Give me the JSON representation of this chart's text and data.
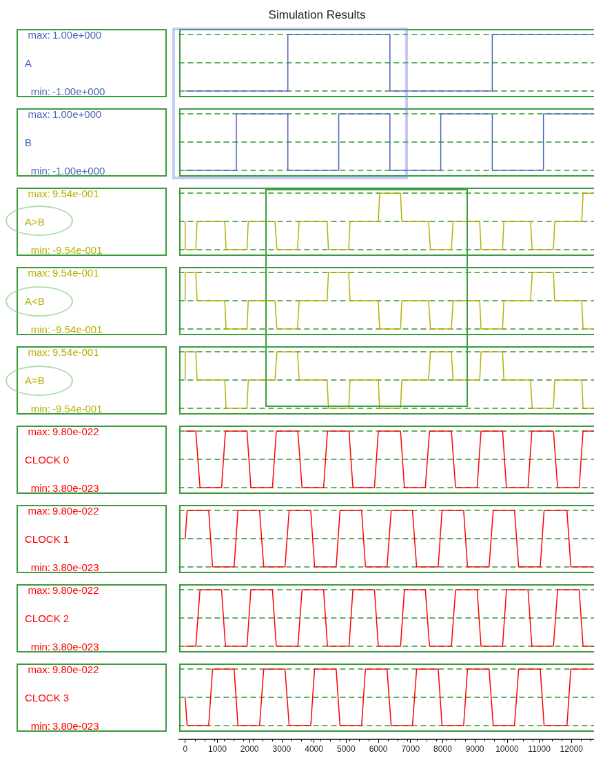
{
  "chart_data": [
    {
      "type": "line",
      "title": "Simulation Results",
      "ylabel": "A",
      "xlim": [
        -200,
        12700
      ],
      "ylim": [
        -1,
        1
      ],
      "ref_lines": [
        {
          "axis": "y",
          "value": 0,
          "color": "#3c9a3c",
          "line_style": "dashed"
        }
      ],
      "yticks": [
        {
          "value": -1,
          "label": "-1.00e+000"
        },
        {
          "value": 1,
          "label": "1.00e+000"
        }
      ],
      "annotations": [
        "max:",
        "min:"
      ],
      "tick_labels": "y",
      "grid": "y",
      "marker": "none",
      "line_style": "solid",
      "series": [
        {
          "color": "#4466bb",
          "x": [
            0,
            3190,
            3190,
            6360,
            6360,
            9540,
            9540,
            12700
          ],
          "values": [
            -1,
            -1,
            1,
            1,
            -1,
            -1,
            1,
            1
          ]
        }
      ]
    },
    {
      "type": "line",
      "ylabel": "B",
      "xlim": [
        -200,
        12700
      ],
      "ylim": [
        -1,
        1
      ],
      "ref_lines": [
        {
          "axis": "y",
          "value": 0,
          "color": "#3c9a3c",
          "line_style": "dashed"
        }
      ],
      "yticks": [
        {
          "value": -1,
          "label": "-1.00e+000"
        },
        {
          "value": 1,
          "label": "1.00e+000"
        }
      ],
      "annotations": [
        "max:",
        "min:"
      ],
      "tick_labels": "y",
      "grid": "y",
      "marker": "none",
      "line_style": "solid",
      "series": [
        {
          "color": "#4466bb",
          "x": [
            0,
            1590,
            1590,
            3190,
            3190,
            4770,
            4770,
            6360,
            6360,
            7940,
            7940,
            9540,
            9540,
            11130,
            11130,
            12700
          ],
          "values": [
            -1,
            -1,
            1,
            1,
            -1,
            -1,
            1,
            1,
            -1,
            -1,
            1,
            1,
            -1,
            -1,
            1,
            1
          ]
        }
      ]
    },
    {
      "type": "line",
      "ylabel": "A>B",
      "xlim": [
        -200,
        12700
      ],
      "ylim": [
        -0.954,
        0.954
      ],
      "ref_lines": [
        {
          "axis": "y",
          "value": 0,
          "color": "#3c9a3c",
          "line_style": "dashed"
        }
      ],
      "yticks": [
        {
          "value": -0.954,
          "label": "-9.54e-001"
        },
        {
          "value": 0.954,
          "label": "9.54e-001"
        }
      ],
      "annotations": [
        "max:",
        "min:"
      ],
      "tick_labels": "y",
      "grid": "y",
      "marker": "none",
      "line_style": "solid",
      "series": [
        {
          "color": "#b5b000",
          "x": [
            0,
            0,
            330,
            370,
            1230,
            1270,
            1920,
            1960,
            2790,
            2850,
            3490,
            3540,
            4410,
            4450,
            5080,
            5120,
            6000,
            6040,
            6690,
            6730,
            7560,
            7620,
            8270,
            8320,
            9150,
            9190,
            9860,
            9900,
            10730,
            10780,
            11440,
            11480,
            12320,
            12360,
            12700
          ],
          "values": [
            0,
            -0.954,
            -0.954,
            0,
            0,
            -0.954,
            -0.954,
            0,
            0,
            -0.954,
            -0.954,
            0,
            0,
            -0.954,
            -0.954,
            0,
            0,
            0.954,
            0.954,
            0,
            0,
            -0.954,
            -0.954,
            0,
            0,
            -0.954,
            -0.954,
            0,
            0,
            -0.954,
            -0.954,
            0,
            0,
            0.954,
            0.954
          ]
        }
      ]
    },
    {
      "type": "line",
      "ylabel": "A<B",
      "xlim": [
        -200,
        12700
      ],
      "ylim": [
        -0.954,
        0.954
      ],
      "ref_lines": [
        {
          "axis": "y",
          "value": 0,
          "color": "#3c9a3c",
          "line_style": "dashed"
        }
      ],
      "yticks": [
        {
          "value": -0.954,
          "label": "-9.54e-001"
        },
        {
          "value": 0.954,
          "label": "9.54e-001"
        }
      ],
      "annotations": [
        "max:",
        "min:"
      ],
      "tick_labels": "y",
      "grid": "y",
      "marker": "none",
      "line_style": "solid",
      "series": [
        {
          "color": "#b5b000",
          "x": [
            0,
            0,
            330,
            370,
            1230,
            1270,
            1920,
            1960,
            2790,
            2850,
            3490,
            3540,
            4410,
            4450,
            5080,
            5120,
            6000,
            6040,
            6690,
            6730,
            7560,
            7620,
            8270,
            8320,
            9150,
            9190,
            9860,
            9900,
            10730,
            10780,
            11440,
            11480,
            12320,
            12360,
            12700
          ],
          "values": [
            0,
            0.954,
            0.954,
            0,
            0,
            -0.954,
            -0.954,
            0,
            0,
            -0.954,
            -0.954,
            0,
            0,
            0.954,
            0.954,
            0,
            0,
            -0.954,
            -0.954,
            0,
            0,
            -0.954,
            -0.954,
            0,
            0,
            -0.954,
            -0.954,
            0,
            0,
            0.954,
            0.954,
            0,
            0,
            -0.954,
            -0.954
          ]
        }
      ]
    },
    {
      "type": "line",
      "ylabel": "A=B",
      "xlim": [
        -200,
        12700
      ],
      "ylim": [
        -0.954,
        0.954
      ],
      "ref_lines": [
        {
          "axis": "y",
          "value": 0,
          "color": "#3c9a3c",
          "line_style": "dashed"
        }
      ],
      "yticks": [
        {
          "value": -0.954,
          "label": "-9.54e-001"
        },
        {
          "value": 0.954,
          "label": "9.54e-001"
        }
      ],
      "annotations": [
        "max:",
        "min:"
      ],
      "tick_labels": "y",
      "grid": "y",
      "marker": "none",
      "line_style": "solid",
      "series": [
        {
          "color": "#b5b000",
          "x": [
            0,
            0,
            330,
            370,
            1230,
            1270,
            1920,
            1960,
            2790,
            2850,
            3490,
            3540,
            4410,
            4450,
            5080,
            5120,
            6000,
            6040,
            6690,
            6730,
            7560,
            7620,
            8270,
            8320,
            9150,
            9190,
            9860,
            9900,
            10730,
            10780,
            11440,
            11480,
            12320,
            12360,
            12700
          ],
          "values": [
            0,
            0.954,
            0.954,
            0,
            0,
            -0.954,
            -0.954,
            0,
            0,
            0.954,
            0.954,
            0,
            0,
            -0.954,
            -0.954,
            0,
            0,
            -0.954,
            -0.954,
            0,
            0,
            0.954,
            0.954,
            0,
            0,
            0.954,
            0.954,
            0,
            0,
            -0.954,
            -0.954,
            0,
            0,
            -0.954,
            -0.954
          ]
        }
      ]
    },
    {
      "type": "line",
      "ylabel": "CLOCK 0",
      "xlim": [
        -200,
        12700
      ],
      "ylim": [
        3.8e-23,
        9.8e-22
      ],
      "ref_lines": [
        {
          "axis": "y",
          "value": 5.09e-22,
          "color": "#3c9a3c",
          "line_style": "dashed"
        }
      ],
      "yticks": [
        {
          "value": 3.8e-23,
          "label": "3.80e-023"
        },
        {
          "value": 9.8e-22,
          "label": "9.80e-022"
        }
      ],
      "annotations": [
        "max:",
        "min:"
      ],
      "tick_labels": "y",
      "grid": "y",
      "marker": "none",
      "line_style": "solid",
      "series": [
        {
          "color": "#ff0000",
          "x": [
            0,
            330,
            460,
            1130,
            1250,
            1920,
            2040,
            2710,
            2830,
            3500,
            3630,
            4300,
            4420,
            5090,
            5210,
            5880,
            6000,
            6690,
            6810,
            7460,
            7590,
            8270,
            8400,
            9070,
            9190,
            9860,
            9980,
            10650,
            10770,
            11440,
            11570,
            12240,
            12360,
            12700
          ],
          "values": [
            9.8e-22,
            9.8e-22,
            3.8e-23,
            3.8e-23,
            9.8e-22,
            9.8e-22,
            3.8e-23,
            3.8e-23,
            9.8e-22,
            9.8e-22,
            3.8e-23,
            3.8e-23,
            9.8e-22,
            9.8e-22,
            3.8e-23,
            3.8e-23,
            9.8e-22,
            9.8e-22,
            3.8e-23,
            3.8e-23,
            9.8e-22,
            9.8e-22,
            3.8e-23,
            3.8e-23,
            9.8e-22,
            9.8e-22,
            3.8e-23,
            3.8e-23,
            9.8e-22,
            9.8e-22,
            3.8e-23,
            3.8e-23,
            9.8e-22,
            9.8e-22
          ]
        }
      ]
    },
    {
      "type": "line",
      "ylabel": "CLOCK 1",
      "xlim": [
        -200,
        12700
      ],
      "ylim": [
        3.8e-23,
        9.8e-22
      ],
      "ref_lines": [
        {
          "axis": "y",
          "value": 5.09e-22,
          "color": "#3c9a3c",
          "line_style": "dashed"
        }
      ],
      "yticks": [
        {
          "value": 3.8e-23,
          "label": "3.80e-023"
        },
        {
          "value": 9.8e-22,
          "label": "9.80e-022"
        }
      ],
      "annotations": [
        "max:",
        "min:"
      ],
      "tick_labels": "y",
      "grid": "y",
      "marker": "none",
      "line_style": "solid",
      "series": [
        {
          "color": "#ff0000",
          "x": [
            0,
            60,
            730,
            850,
            1520,
            1640,
            2310,
            2440,
            3100,
            3230,
            3900,
            4020,
            4690,
            4810,
            5480,
            5600,
            6270,
            6400,
            7060,
            7190,
            7860,
            7980,
            8650,
            8770,
            9440,
            9570,
            10230,
            10360,
            11030,
            11150,
            11860,
            11980,
            12650
          ],
          "values": [
            5.09e-22,
            9.8e-22,
            9.8e-22,
            3.8e-23,
            3.8e-23,
            9.8e-22,
            9.8e-22,
            3.8e-23,
            3.8e-23,
            9.8e-22,
            9.8e-22,
            3.8e-23,
            3.8e-23,
            9.8e-22,
            9.8e-22,
            3.8e-23,
            3.8e-23,
            9.8e-22,
            9.8e-22,
            3.8e-23,
            3.8e-23,
            9.8e-22,
            9.8e-22,
            3.8e-23,
            3.8e-23,
            9.8e-22,
            9.8e-22,
            3.8e-23,
            3.8e-23,
            9.8e-22,
            9.8e-22,
            3.8e-23,
            3.8e-23
          ]
        }
      ]
    },
    {
      "type": "line",
      "ylabel": "CLOCK 2",
      "xlim": [
        -200,
        12700
      ],
      "ylim": [
        3.8e-23,
        9.8e-22
      ],
      "ref_lines": [
        {
          "axis": "y",
          "value": 5.09e-22,
          "color": "#3c9a3c",
          "line_style": "dashed"
        }
      ],
      "yticks": [
        {
          "value": 3.8e-23,
          "label": "3.80e-023"
        },
        {
          "value": 9.8e-22,
          "label": "9.80e-022"
        }
      ],
      "annotations": [
        "max:",
        "min:"
      ],
      "tick_labels": "y",
      "grid": "y",
      "marker": "none",
      "line_style": "solid",
      "series": [
        {
          "color": "#ff0000",
          "x": [
            0,
            330,
            460,
            1130,
            1250,
            1920,
            2040,
            2710,
            2830,
            3500,
            3630,
            4300,
            4420,
            5090,
            5210,
            5880,
            6000,
            6690,
            6810,
            7460,
            7590,
            8270,
            8400,
            9070,
            9190,
            9860,
            9980,
            10650,
            10770,
            11440,
            11570,
            12240,
            12360,
            12700
          ],
          "values": [
            3.8e-23,
            3.8e-23,
            9.8e-22,
            9.8e-22,
            3.8e-23,
            3.8e-23,
            9.8e-22,
            9.8e-22,
            3.8e-23,
            3.8e-23,
            9.8e-22,
            9.8e-22,
            3.8e-23,
            3.8e-23,
            9.8e-22,
            9.8e-22,
            3.8e-23,
            3.8e-23,
            9.8e-22,
            9.8e-22,
            3.8e-23,
            3.8e-23,
            9.8e-22,
            9.8e-22,
            3.8e-23,
            3.8e-23,
            9.8e-22,
            9.8e-22,
            3.8e-23,
            3.8e-23,
            9.8e-22,
            9.8e-22,
            3.8e-23,
            3.8e-23
          ]
        }
      ]
    },
    {
      "type": "line",
      "ylabel": "CLOCK 3",
      "xlim": [
        -200,
        12700
      ],
      "ylim": [
        3.8e-23,
        9.8e-22
      ],
      "ref_lines": [
        {
          "axis": "y",
          "value": 5.09e-22,
          "color": "#3c9a3c",
          "line_style": "dashed"
        }
      ],
      "yticks": [
        {
          "value": 3.8e-23,
          "label": "3.80e-023"
        },
        {
          "value": 9.8e-22,
          "label": "9.80e-022"
        }
      ],
      "annotations": [
        "max:",
        "min:"
      ],
      "xticks": [
        0,
        1000,
        2000,
        3000,
        4000,
        5000,
        6000,
        7000,
        8000,
        9000,
        10000,
        11000,
        12000
      ],
      "grid": "y",
      "marker": "none",
      "line_style": "solid",
      "series": [
        {
          "color": "#ff0000",
          "x": [
            0,
            60,
            730,
            850,
            1520,
            1640,
            2310,
            2440,
            3100,
            3230,
            3900,
            4020,
            4690,
            4810,
            5480,
            5600,
            6270,
            6400,
            7060,
            7190,
            7860,
            7980,
            8650,
            8770,
            9440,
            9570,
            10230,
            10360,
            11030,
            11150,
            11860,
            11980,
            12650
          ],
          "values": [
            5.09e-22,
            3.8e-23,
            3.8e-23,
            9.8e-22,
            9.8e-22,
            3.8e-23,
            3.8e-23,
            9.8e-22,
            9.8e-22,
            3.8e-23,
            3.8e-23,
            9.8e-22,
            9.8e-22,
            3.8e-23,
            3.8e-23,
            9.8e-22,
            9.8e-22,
            3.8e-23,
            3.8e-23,
            9.8e-22,
            9.8e-22,
            3.8e-23,
            3.8e-23,
            9.8e-22,
            9.8e-22,
            3.8e-23,
            3.8e-23,
            9.8e-22,
            9.8e-22,
            3.8e-23,
            3.8e-23,
            9.8e-22,
            9.8e-22
          ]
        }
      ]
    }
  ]
}
